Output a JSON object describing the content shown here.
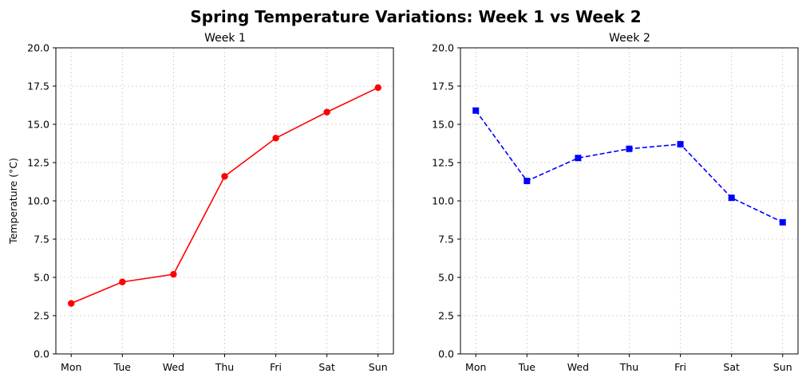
{
  "suptitle": "Spring Temperature Variations: Week 1 vs Week 2",
  "chart_data": [
    {
      "type": "line",
      "title": "Week 1",
      "xlabel": "",
      "ylabel": "Temperature (°C)",
      "categories": [
        "Mon",
        "Tue",
        "Wed",
        "Thu",
        "Fri",
        "Sat",
        "Sun"
      ],
      "ylim": [
        0,
        20
      ],
      "yticks": [
        "0.0",
        "2.5",
        "5.0",
        "7.5",
        "10.0",
        "12.5",
        "15.0",
        "17.5",
        "20.0"
      ],
      "grid": true,
      "series": [
        {
          "values": [
            3.3,
            4.7,
            5.2,
            11.6,
            14.1,
            15.8,
            17.4
          ],
          "color": "#ff0000",
          "marker": "circle",
          "linestyle": "solid"
        }
      ]
    },
    {
      "type": "line",
      "title": "Week 2",
      "xlabel": "",
      "ylabel": "",
      "categories": [
        "Mon",
        "Tue",
        "Wed",
        "Thu",
        "Fri",
        "Sat",
        "Sun"
      ],
      "ylim": [
        0,
        20
      ],
      "yticks": [
        "0.0",
        "2.5",
        "5.0",
        "7.5",
        "10.0",
        "12.5",
        "15.0",
        "17.5",
        "20.0"
      ],
      "grid": true,
      "series": [
        {
          "values": [
            15.9,
            11.3,
            12.8,
            13.4,
            13.7,
            10.2,
            8.6
          ],
          "color": "#0000ff",
          "marker": "square",
          "linestyle": "dashed"
        }
      ]
    }
  ]
}
